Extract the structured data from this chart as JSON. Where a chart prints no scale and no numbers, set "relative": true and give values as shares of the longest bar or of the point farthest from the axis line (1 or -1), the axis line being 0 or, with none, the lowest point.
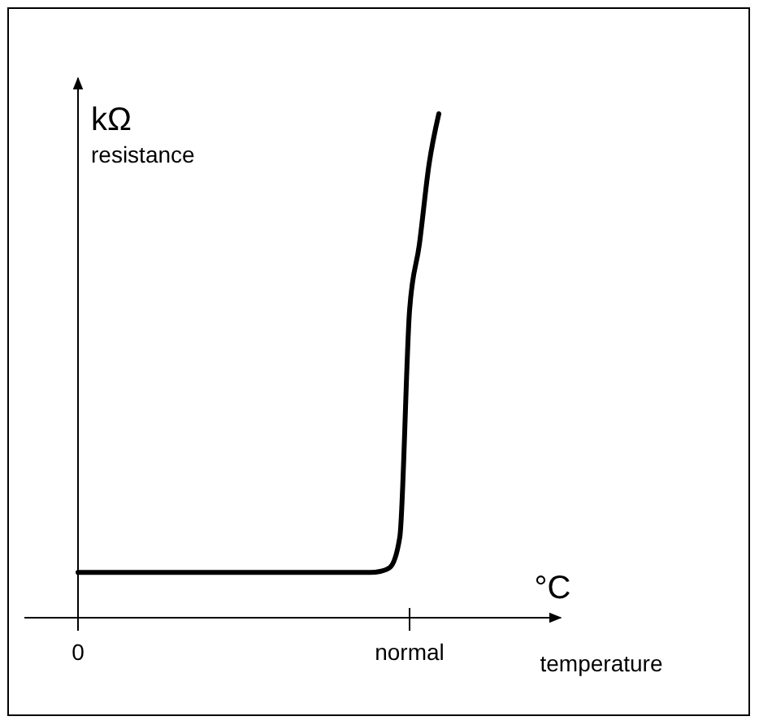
{
  "chart_data": {
    "type": "line",
    "relative": true,
    "xlabel": "°C\ntemperature",
    "ylabel": "kΩ\nresistance",
    "categories": [
      "0",
      null,
      null,
      null,
      null,
      null,
      null,
      null,
      null,
      null,
      null,
      null,
      null,
      null,
      null,
      null,
      null,
      null,
      null,
      null,
      null,
      null,
      null,
      null,
      null,
      null,
      null,
      null,
      null,
      null,
      null,
      null,
      null,
      null,
      "normal",
      null,
      null,
      null
    ],
    "series": [
      {
        "color": "#000000",
        "values": [
          0.09,
          0.09,
          0.09,
          0.09,
          0.09,
          0.09,
          0.09,
          0.09,
          0.09,
          0.09,
          0.09,
          0.09,
          0.09,
          0.09,
          0.09,
          0.09,
          0.09,
          0.09,
          0.09,
          0.09,
          0.09,
          0.09,
          0.09,
          0.09,
          0.09,
          0.09,
          0.09,
          0.09,
          0.09,
          0.09,
          0.09,
          0.092,
          0.1,
          0.16,
          0.61,
          0.74,
          0.9,
          1
        ]
      }
    ],
    "marker": "none",
    "line_style": "solid"
  }
}
